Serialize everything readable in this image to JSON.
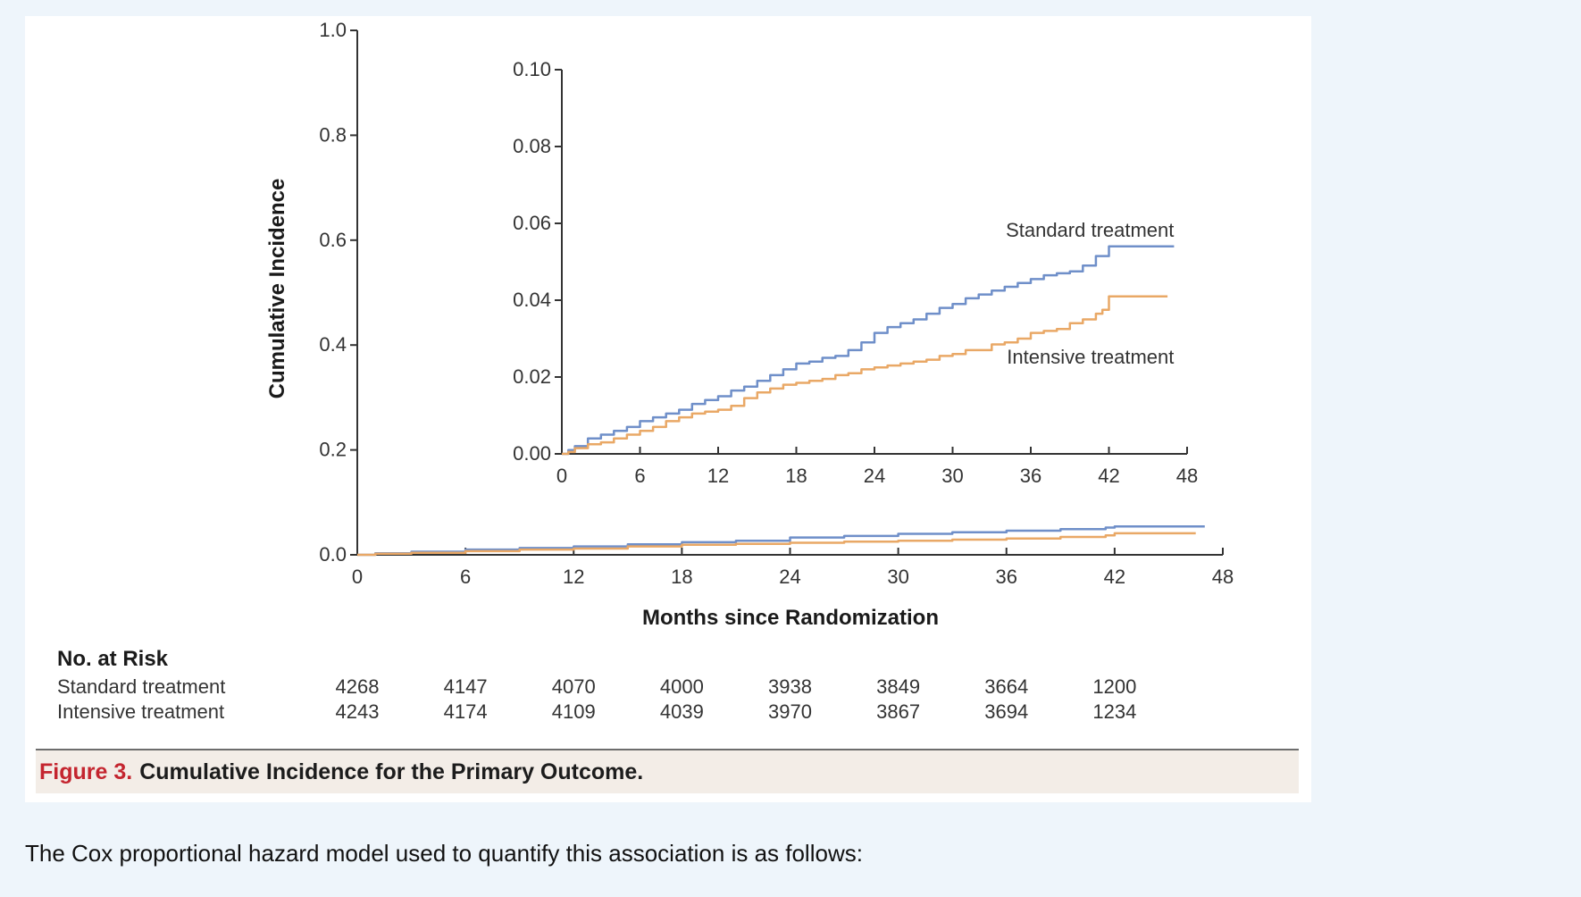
{
  "colors": {
    "standard": "#6f8fc9",
    "intensive": "#e9a866",
    "figure_label": "#c4252f",
    "axis": "#333333"
  },
  "chart_data": [
    {
      "type": "line",
      "name": "main",
      "xlabel": "Months since Randomization",
      "ylabel": "Cumulative Incidence",
      "xlim": [
        0,
        48
      ],
      "ylim": [
        0,
        1.0
      ],
      "xticks": [
        "0",
        "6",
        "12",
        "18",
        "24",
        "30",
        "36",
        "42",
        "48"
      ],
      "yticks": [
        "0.0",
        "0.2",
        "0.4",
        "0.6",
        "0.8",
        "1.0"
      ],
      "series": [
        {
          "name": "Standard treatment",
          "x": [
            0,
            1,
            3,
            6,
            9,
            12,
            15,
            18,
            21,
            24,
            27,
            30,
            33,
            36,
            39,
            41.5,
            42,
            47
          ],
          "y": [
            0,
            0.003,
            0.006,
            0.01,
            0.013,
            0.016,
            0.02,
            0.024,
            0.027,
            0.033,
            0.036,
            0.04,
            0.043,
            0.046,
            0.049,
            0.052,
            0.054,
            0.054
          ]
        },
        {
          "name": "Intensive treatment",
          "x": [
            0,
            1,
            3,
            6,
            9,
            12,
            15,
            18,
            21,
            24,
            27,
            30,
            33,
            36,
            39,
            41.5,
            42,
            46.5
          ],
          "y": [
            0,
            0.002,
            0.004,
            0.007,
            0.01,
            0.012,
            0.016,
            0.019,
            0.021,
            0.023,
            0.025,
            0.027,
            0.029,
            0.031,
            0.034,
            0.037,
            0.041,
            0.041
          ]
        }
      ]
    },
    {
      "type": "line",
      "name": "inset",
      "xlim": [
        0,
        48
      ],
      "ylim": [
        0,
        0.1
      ],
      "xticks": [
        "0",
        "6",
        "12",
        "18",
        "24",
        "30",
        "36",
        "42",
        "48"
      ],
      "yticks": [
        "0.00",
        "0.02",
        "0.04",
        "0.06",
        "0.08",
        "0.10"
      ],
      "annotations": [
        "Standard treatment",
        "Intensive treatment"
      ],
      "series": [
        {
          "name": "Standard treatment",
          "x": [
            0,
            0.5,
            1,
            2,
            3,
            4,
            5,
            6,
            7,
            8,
            9,
            10,
            11,
            12,
            13,
            14,
            15,
            16,
            17,
            18,
            19,
            20,
            21,
            22,
            23,
            24,
            25,
            26,
            27,
            28,
            29,
            30,
            31,
            32,
            33,
            34,
            35,
            36,
            37,
            38,
            39,
            40,
            41,
            41.5,
            42,
            47
          ],
          "y": [
            0,
            0.001,
            0.002,
            0.004,
            0.005,
            0.006,
            0.007,
            0.0085,
            0.0095,
            0.0105,
            0.0115,
            0.013,
            0.014,
            0.015,
            0.0165,
            0.0175,
            0.019,
            0.0205,
            0.022,
            0.0235,
            0.024,
            0.025,
            0.0255,
            0.027,
            0.029,
            0.0315,
            0.033,
            0.034,
            0.035,
            0.0365,
            0.038,
            0.039,
            0.0405,
            0.0415,
            0.0425,
            0.0435,
            0.0445,
            0.0455,
            0.0465,
            0.047,
            0.0475,
            0.049,
            0.0515,
            0.0515,
            0.054,
            0.054
          ]
        },
        {
          "name": "Intensive treatment",
          "x": [
            0,
            0.5,
            1,
            2,
            3,
            4,
            5,
            6,
            7,
            8,
            9,
            10,
            11,
            12,
            13,
            14,
            15,
            16,
            17,
            18,
            19,
            20,
            21,
            22,
            23,
            24,
            25,
            26,
            27,
            28,
            29,
            30,
            31,
            32,
            33,
            34,
            35,
            36,
            37,
            38,
            39,
            40,
            41,
            41.5,
            42,
            46.5
          ],
          "y": [
            0,
            0.0005,
            0.0015,
            0.0025,
            0.003,
            0.004,
            0.005,
            0.006,
            0.007,
            0.0085,
            0.0095,
            0.0105,
            0.011,
            0.0115,
            0.0125,
            0.0145,
            0.016,
            0.017,
            0.018,
            0.0185,
            0.019,
            0.0195,
            0.0205,
            0.021,
            0.022,
            0.0225,
            0.023,
            0.0235,
            0.024,
            0.0245,
            0.0255,
            0.026,
            0.027,
            0.027,
            0.0285,
            0.029,
            0.03,
            0.0315,
            0.032,
            0.0325,
            0.034,
            0.035,
            0.0365,
            0.0375,
            0.041,
            0.041
          ]
        }
      ]
    }
  ],
  "risk_table": {
    "title": "No. at Risk",
    "rows": [
      {
        "label": "Standard treatment",
        "values": [
          "4268",
          "4147",
          "4070",
          "4000",
          "3938",
          "3849",
          "3664",
          "1200"
        ]
      },
      {
        "label": "Intensive treatment",
        "values": [
          "4243",
          "4174",
          "4109",
          "4039",
          "3970",
          "3867",
          "3694",
          "1234"
        ]
      }
    ]
  },
  "caption": {
    "figure_number": "Figure 3.",
    "title": "Cumulative Incidence for the Primary Outcome."
  },
  "body_text": "The Cox proportional hazard model used to quantify this association is as follows:"
}
